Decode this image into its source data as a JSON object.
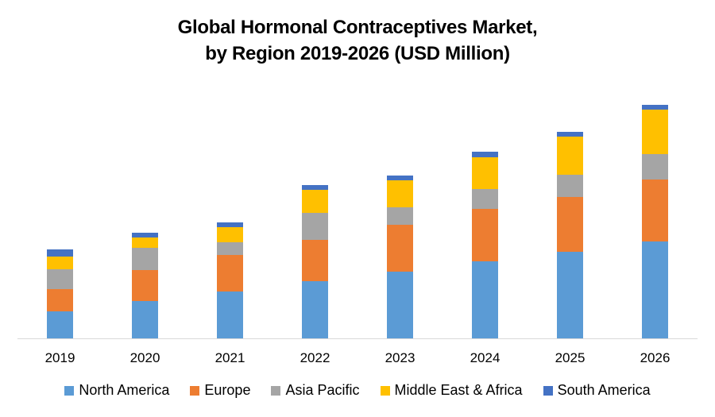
{
  "chart_data": {
    "type": "bar",
    "stacked": true,
    "title": "Global Hormonal Contraceptives Market, by Region 2019-2026 (USD Million)",
    "title_lines": [
      "Global Hormonal Contraceptives Market,",
      "by Region 2019-2026 (USD Million)"
    ],
    "xlabel": "",
    "ylabel": "",
    "y_axis_visible": false,
    "value_units": "relative (no y-axis scale shown)",
    "ylim": [
      0,
      300
    ],
    "grid": false,
    "legend_position": "bottom",
    "categories": [
      "2019",
      "2020",
      "2021",
      "2022",
      "2023",
      "2024",
      "2025",
      "2026"
    ],
    "series": [
      {
        "name": "North America",
        "color": "#5B9BD5",
        "values": [
          34,
          47,
          59,
          72,
          84,
          97,
          109,
          122
        ]
      },
      {
        "name": "Europe",
        "color": "#ED7D31",
        "values": [
          28,
          39,
          46,
          52,
          59,
          66,
          69,
          78
        ]
      },
      {
        "name": "Asia Pacific",
        "color": "#A5A5A5",
        "values": [
          25,
          28,
          16,
          34,
          22,
          25,
          28,
          32
        ]
      },
      {
        "name": "Middle East & Africa",
        "color": "#FFC000",
        "values": [
          16,
          13,
          19,
          29,
          34,
          40,
          48,
          56
        ]
      },
      {
        "name": "South America",
        "color": "#4472C4",
        "values": [
          9,
          6,
          6,
          6,
          6,
          7,
          6,
          6
        ]
      }
    ],
    "axis_color": "#D9D9D9"
  }
}
